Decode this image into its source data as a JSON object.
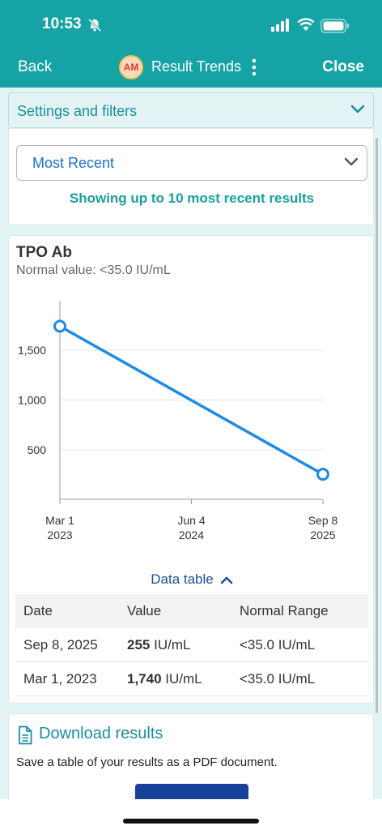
{
  "status_bar": {
    "time": "10:53"
  },
  "nav": {
    "back": "Back",
    "avatar_initials": "AM",
    "title": "Result Trends",
    "close": "Close"
  },
  "filters": {
    "label": "Settings and filters",
    "selected": "Most Recent",
    "showing": "Showing up to 10 most recent results"
  },
  "result": {
    "test_name": "TPO Ab",
    "normal": "Normal value: <35.0 IU/mL"
  },
  "chart_data": {
    "type": "line",
    "title": "",
    "xlabel": "",
    "ylabel": "",
    "x": [
      "2023-03-01",
      "2025-09-08"
    ],
    "series": [
      {
        "values": [
          1740,
          255
        ]
      }
    ],
    "x_ticks": [
      {
        "date": "2023-03-01",
        "line1": "Mar 1",
        "line2": "2023"
      },
      {
        "date": "2024-06-04",
        "line1": "Jun 4",
        "line2": "2024"
      },
      {
        "date": "2025-09-08",
        "line1": "Sep 8",
        "line2": "2025"
      }
    ],
    "y_ticks": [
      {
        "value": 500,
        "label": "500"
      },
      {
        "value": 1000,
        "label": "1,000"
      },
      {
        "value": 1500,
        "label": "1,500"
      }
    ],
    "grid": true,
    "color": "#1f8ae6"
  },
  "data_table": {
    "toggle": "Data table",
    "headers": {
      "date": "Date",
      "value": "Value",
      "range": "Normal Range"
    },
    "rows": [
      {
        "date": "Sep 8, 2025",
        "value": "255",
        "unit": " IU/mL",
        "range": "<35.0 IU/mL"
      },
      {
        "date": "Mar 1, 2023",
        "value": "1,740",
        "unit": " IU/mL",
        "range": "<35.0 IU/mL"
      }
    ]
  },
  "download": {
    "title": "Download results",
    "description": "Save a table of your results as a PDF document."
  }
}
